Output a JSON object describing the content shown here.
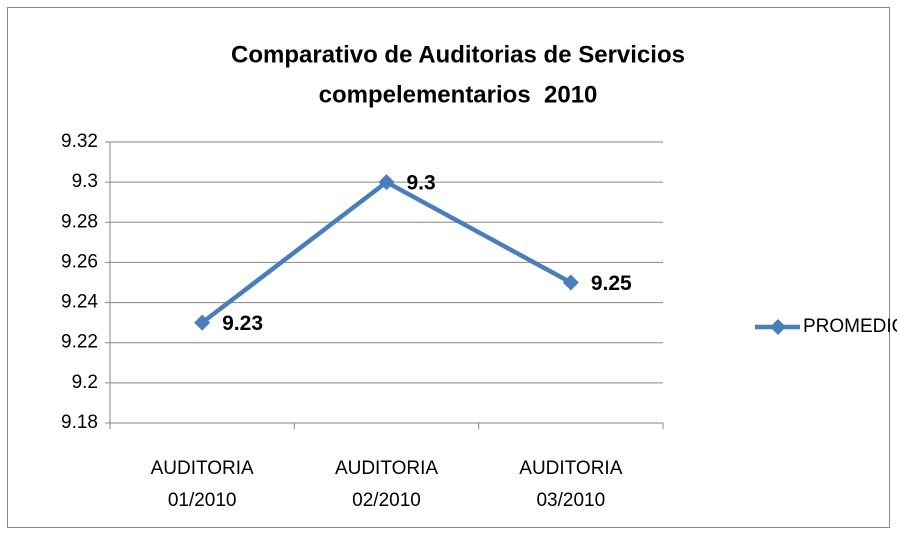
{
  "chart_data": {
    "type": "line",
    "title": [
      "Comparativo de Auditorias de Servicios",
      "compelementarios  2010"
    ],
    "categories": [
      "AUDITORIA 01/2010",
      "AUDITORIA 02/2010",
      "AUDITORIA 03/2010"
    ],
    "series": [
      {
        "name": "PROMEDIO",
        "color": "#4a7ebb",
        "values": [
          9.23,
          9.3,
          9.25
        ]
      }
    ],
    "ylim": [
      9.18,
      9.32
    ],
    "yticks": [
      9.18,
      9.2,
      9.22,
      9.24,
      9.26,
      9.28,
      9.3,
      9.32
    ],
    "grid": true,
    "legend": "right",
    "data_labels": true
  }
}
